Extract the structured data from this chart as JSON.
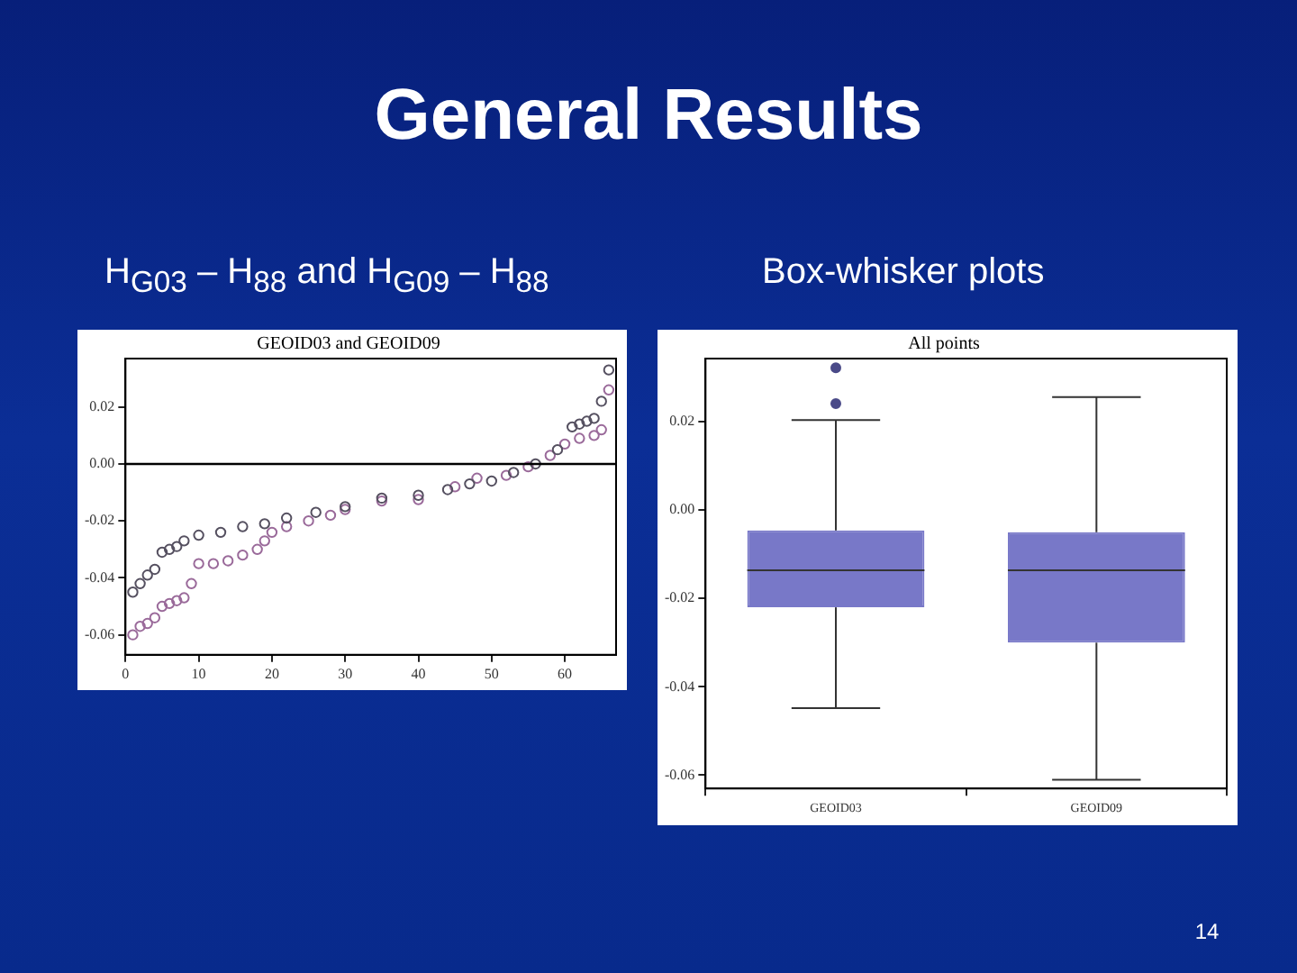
{
  "chart_data": [
    {
      "type": "scatter",
      "title": "GEOID03 and GEOID09",
      "subtitle": "H$_{G03}$ – H$_{88}$ and H$_{G09}$ – H$_{88}$",
      "annotations": [
        "General Results",
        "14"
      ],
      "marker": "circle",
      "xlim": [
        0,
        67
      ],
      "xticks": [
        0,
        10,
        20,
        30,
        40,
        50,
        60
      ],
      "ylim": [
        -0.067,
        0.037
      ],
      "yticks": [
        {
          "value": 0.02,
          "label": "0.02"
        },
        {
          "value": 0,
          "label": "0.00"
        },
        {
          "value": -0.02,
          "label": "-0.02"
        },
        {
          "value": -0.04,
          "label": "-0.04"
        },
        {
          "value": -0.06,
          "label": "-0.06"
        }
      ],
      "ref_lines": [
        {
          "axis": "y",
          "value": 0,
          "color": "#000000"
        }
      ],
      "series": [
        {
          "color": "#555060",
          "x": [
            1,
            2,
            3,
            4,
            5,
            6,
            7,
            8,
            10,
            13,
            16,
            19,
            22,
            26,
            30,
            35,
            40,
            44,
            47,
            50,
            53,
            56,
            59,
            61,
            62,
            63,
            64,
            65,
            66
          ],
          "values": [
            -0.045,
            -0.042,
            -0.039,
            -0.037,
            -0.031,
            -0.03,
            -0.029,
            -0.027,
            -0.025,
            -0.024,
            -0.022,
            -0.021,
            -0.019,
            -0.017,
            -0.015,
            -0.012,
            -0.011,
            -0.009,
            -0.007,
            -0.006,
            -0.003,
            0.0,
            0.005,
            0.013,
            0.014,
            0.015,
            0.016,
            0.022,
            0.033
          ]
        },
        {
          "color": "#9a6a9a",
          "x": [
            1,
            2,
            3,
            4,
            5,
            6,
            7,
            8,
            9,
            10,
            12,
            14,
            16,
            18,
            19,
            20,
            22,
            25,
            28,
            30,
            35,
            40,
            45,
            48,
            52,
            55,
            58,
            60,
            62,
            64,
            65,
            66
          ],
          "values": [
            -0.06,
            -0.057,
            -0.056,
            -0.054,
            -0.05,
            -0.049,
            -0.048,
            -0.047,
            -0.042,
            -0.035,
            -0.035,
            -0.034,
            -0.032,
            -0.03,
            -0.027,
            -0.024,
            -0.022,
            -0.02,
            -0.018,
            -0.016,
            -0.013,
            -0.0125,
            -0.008,
            -0.005,
            -0.004,
            -0.001,
            0.003,
            0.007,
            0.009,
            0.01,
            0.012,
            0.026
          ]
        }
      ]
    },
    {
      "type": "box",
      "title": "All points",
      "subtitle": "Box-whisker plots",
      "categories": [
        "GEOID03",
        "GEOID09"
      ],
      "color": "#7878c8",
      "ylim": [
        -0.063,
        0.0343
      ],
      "yticks": [
        {
          "value": 0.02,
          "label": "0.02"
        },
        {
          "value": 0,
          "label": "0.00"
        },
        {
          "value": -0.02,
          "label": "-0.02"
        },
        {
          "value": -0.04,
          "label": "-0.04"
        },
        {
          "value": -0.06,
          "label": "-0.06"
        }
      ],
      "boxes": [
        {
          "low": -0.0448,
          "q1": -0.022,
          "median": -0.0136,
          "q3": -0.0046,
          "high": 0.0204,
          "outliers": [
            0.0322,
            0.0241
          ]
        },
        {
          "low": -0.061,
          "q1": -0.03,
          "median": -0.0136,
          "q3": -0.005,
          "high": 0.0256
        }
      ]
    }
  ]
}
